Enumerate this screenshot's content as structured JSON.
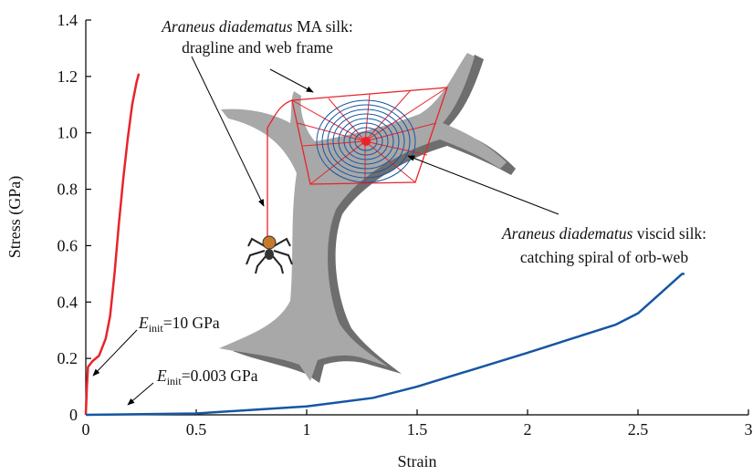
{
  "chart_data": {
    "type": "line",
    "xlabel": "Strain",
    "ylabel": "Stress (GPa)",
    "xlim": [
      0,
      3
    ],
    "ylim": [
      0,
      1.4
    ],
    "xticks": [
      0,
      0.5,
      1,
      1.5,
      2,
      2.5,
      3
    ],
    "yticks": [
      0,
      0.2,
      0.4,
      0.6,
      0.8,
      {
        "value": 1,
        "label": "1.0"
      },
      1.2,
      1.4
    ],
    "series": [
      {
        "color": "#e8242a",
        "x": [
          0,
          0.005,
          0.01,
          0.03,
          0.06,
          0.09,
          0.11,
          0.13,
          0.15,
          0.17,
          0.19,
          0.21,
          0.23,
          0.24
        ],
        "values": [
          0,
          0.1,
          0.17,
          0.19,
          0.21,
          0.27,
          0.35,
          0.5,
          0.68,
          0.84,
          0.98,
          1.1,
          1.18,
          1.21
        ]
      },
      {
        "color": "#1656a3",
        "x": [
          0,
          0.5,
          1,
          1.3,
          1.5,
          1.75,
          2,
          2.2,
          2.4,
          2.5,
          2.6,
          2.7,
          2.71
        ],
        "values": [
          0,
          0.005,
          0.03,
          0.06,
          0.1,
          0.16,
          0.22,
          0.27,
          0.32,
          0.36,
          0.43,
          0.5,
          0.5
        ]
      }
    ],
    "annotations": [
      {
        "species": "Araneus diadematus",
        "label": " MA silk:",
        "line2": "dragline and web frame"
      },
      {
        "species": "Araneus diadematus",
        "label": " viscid silk:",
        "line2": "catching spiral of orb-web"
      },
      {
        "symbol": "E",
        "subscript": "init",
        "text": "=10 GPa"
      },
      {
        "symbol": "E",
        "subscript": "init",
        "text": "=0.003 GPa"
      }
    ]
  }
}
